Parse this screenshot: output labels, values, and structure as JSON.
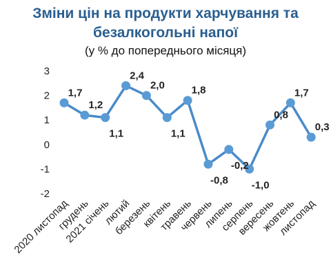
{
  "chart_data": {
    "type": "line",
    "title_lines": [
      "Зміни цін на продукти харчування та",
      "безалкогольні напої"
    ],
    "subtitle": "(у % до попереднього місяця)",
    "categories": [
      "2020 листопад",
      "грудень",
      "2021 січень",
      "лютий",
      "березень",
      "квітень",
      "травень",
      "червень",
      "липень",
      "серпень",
      "вересень",
      "жовтень",
      "листопад"
    ],
    "values": [
      1.7,
      1.2,
      1.1,
      2.4,
      2.0,
      1.1,
      1.8,
      -0.8,
      -0.2,
      -1.0,
      0.8,
      1.7,
      0.3
    ],
    "value_labels": [
      "1,7",
      "1,2",
      "1,1",
      "2,4",
      "2,0",
      "1,1",
      "1,8",
      "-0,8",
      "-0,2",
      "-1,0",
      "0,8",
      "1,7",
      "0,3"
    ],
    "label_positions": [
      "above",
      "above",
      "below",
      "above",
      "above",
      "below",
      "above",
      "below",
      "below",
      "below",
      "above",
      "above",
      "above"
    ],
    "yticks": [
      "3",
      "2",
      "1",
      "0",
      "-1",
      "-2"
    ],
    "ylim": [
      -2,
      3
    ],
    "grid": false,
    "legend": "none",
    "line_color": "#4a8bc9",
    "marker_color": "#5b9bd5"
  }
}
